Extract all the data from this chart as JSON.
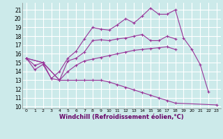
{
  "xlabel": "Windchill (Refroidissement éolien,°C)",
  "background_color": "#cceaea",
  "grid_color": "#ffffff",
  "line_color": "#993399",
  "xlim": [
    -0.5,
    23.5
  ],
  "ylim": [
    9.8,
    21.8
  ],
  "yticks": [
    10,
    11,
    12,
    13,
    14,
    15,
    16,
    17,
    18,
    19,
    20,
    21
  ],
  "xticks": [
    0,
    1,
    2,
    3,
    4,
    5,
    6,
    7,
    8,
    9,
    10,
    11,
    12,
    13,
    14,
    15,
    16,
    17,
    18,
    19,
    20,
    21,
    22,
    23
  ],
  "lines": [
    {
      "x": [
        0,
        1,
        2,
        3,
        4,
        5,
        6,
        7,
        8,
        9,
        10,
        11,
        12,
        13,
        14,
        15,
        16,
        17,
        18,
        19,
        20,
        21,
        22
      ],
      "y": [
        15.5,
        14.2,
        14.8,
        13.2,
        14.0,
        15.5,
        16.3,
        17.7,
        19.0,
        18.8,
        18.7,
        19.3,
        20.0,
        19.5,
        20.3,
        21.2,
        20.5,
        20.5,
        21.0,
        17.8,
        16.5,
        14.8,
        11.7
      ]
    },
    {
      "x": [
        0,
        1,
        2,
        3,
        4,
        5,
        6,
        7,
        8,
        9,
        10,
        11,
        12,
        13,
        14,
        15,
        16,
        17,
        18
      ],
      "y": [
        15.5,
        14.7,
        15.0,
        13.2,
        13.0,
        15.2,
        15.5,
        16.2,
        17.5,
        17.6,
        17.5,
        17.7,
        17.8,
        18.0,
        18.2,
        17.5,
        17.5,
        18.0,
        17.7
      ]
    },
    {
      "x": [
        0,
        2,
        4,
        5,
        6,
        7,
        8,
        9,
        10,
        11,
        12,
        13,
        14,
        15,
        16,
        17,
        18
      ],
      "y": [
        15.5,
        15.0,
        13.0,
        14.0,
        14.7,
        15.2,
        15.4,
        15.6,
        15.8,
        16.0,
        16.2,
        16.4,
        16.5,
        16.6,
        16.7,
        16.8,
        16.5
      ]
    },
    {
      "x": [
        0,
        2,
        4,
        5,
        6,
        7,
        8,
        9,
        10,
        11,
        12,
        13,
        14,
        15,
        16,
        17,
        18,
        23
      ],
      "y": [
        15.5,
        15.0,
        13.0,
        13.0,
        13.0,
        13.0,
        13.0,
        13.0,
        12.8,
        12.5,
        12.2,
        11.9,
        11.6,
        11.3,
        11.0,
        10.7,
        10.4,
        10.2
      ]
    }
  ]
}
